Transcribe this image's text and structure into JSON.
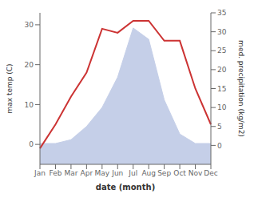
{
  "chart_data": {
    "type": "line",
    "xlabel": "date (month)",
    "ylabel": "max temp (C)",
    "y2label": "med. precipitation (kg/m2)",
    "categories": [
      "Jan",
      "Feb",
      "Mar",
      "Apr",
      "May",
      "Jun",
      "Jul",
      "Aug",
      "Sep",
      "Oct",
      "Nov",
      "Dec"
    ],
    "series": [
      {
        "type": "area",
        "color": "#c5cfe8",
        "axis": "y2",
        "values": [
          0.5,
          0.5,
          1.5,
          5,
          10,
          18,
          31,
          28,
          12,
          3,
          0.5,
          0.5
        ]
      },
      {
        "type": "line",
        "color": "#cc3333",
        "values": [
          -1,
          5,
          12,
          18,
          29,
          28,
          31,
          31,
          26,
          26,
          14,
          5
        ]
      }
    ],
    "ylim": [
      -5,
      33
    ],
    "yticks": [
      0,
      10,
      20,
      30
    ],
    "y2lim": [
      -5,
      35
    ],
    "y2ticks": [
      0,
      5,
      10,
      15,
      20,
      25,
      30,
      35
    ]
  }
}
